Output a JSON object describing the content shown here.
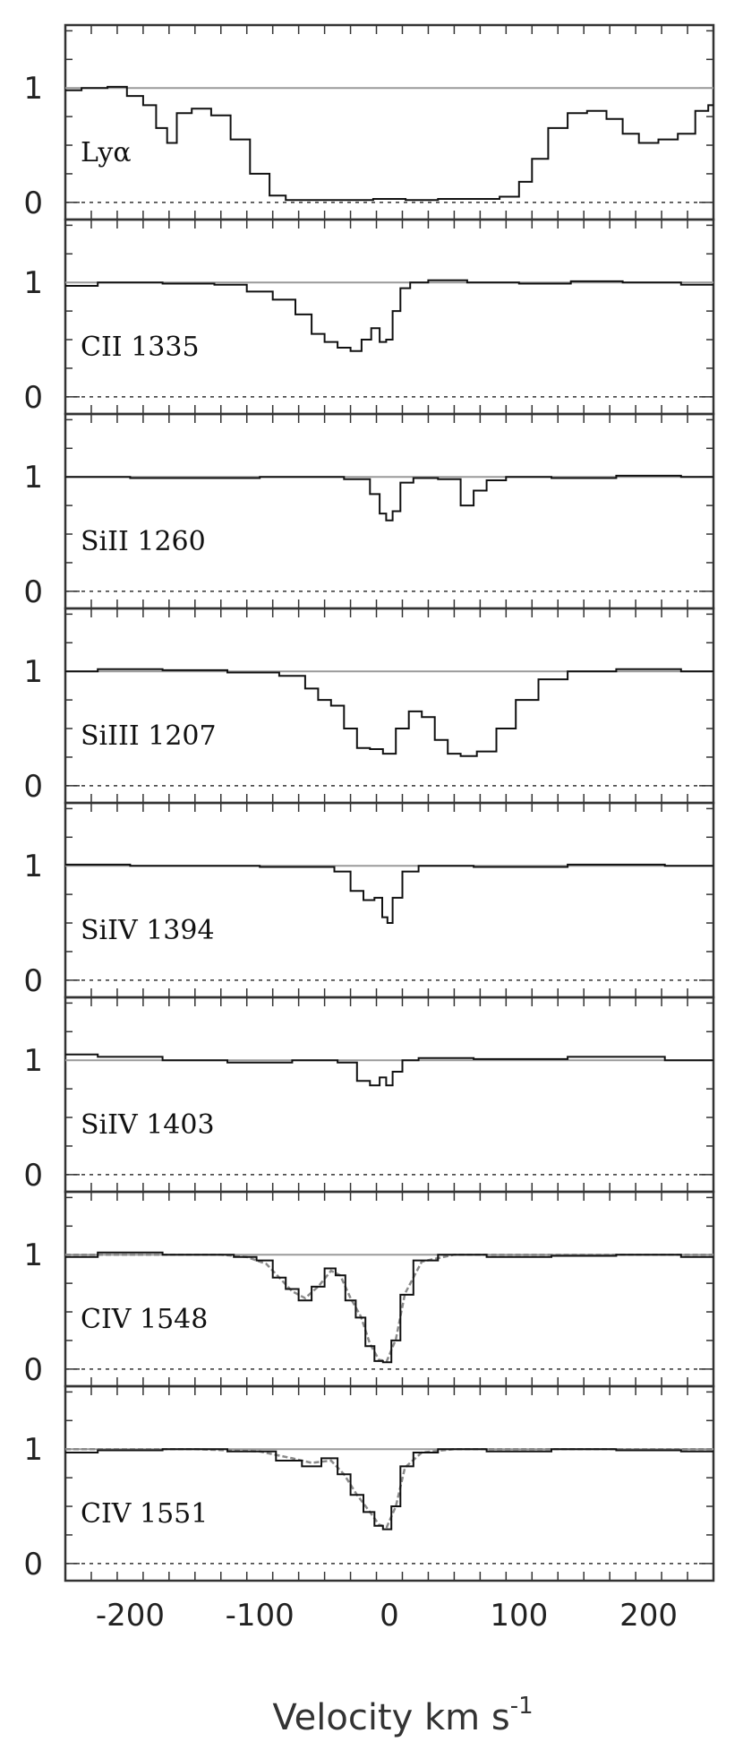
{
  "chart_data": {
    "type": "line",
    "xlim": [
      -250,
      250
    ],
    "ylim": [
      -0.15,
      1.55
    ],
    "x_ticks": [
      -200,
      -100,
      0,
      100,
      200
    ],
    "x_tick_labels": [
      "-200",
      "-100",
      "0",
      "100",
      "200"
    ],
    "y_ticks": [
      0,
      1
    ],
    "y_tick_labels": [
      "0",
      "1"
    ],
    "xlabel_main": "Velocity  km  s",
    "xlabel_sup": "-1",
    "panels": [
      {
        "label": "Lyα",
        "x": [
          -250,
          -225,
          -210,
          -195,
          -185,
          -175,
          -168,
          -160,
          -145,
          -130,
          -115,
          -100,
          -85,
          -75,
          -50,
          -25,
          0,
          25,
          50,
          75,
          95,
          105,
          115,
          130,
          145,
          160,
          175,
          185,
          200,
          215,
          230,
          242,
          250
        ],
        "y": [
          0.98,
          1.0,
          1.01,
          0.93,
          0.85,
          0.65,
          0.52,
          0.78,
          0.82,
          0.76,
          0.55,
          0.25,
          0.06,
          0.02,
          0.02,
          0.02,
          0.03,
          0.02,
          0.03,
          0.03,
          0.05,
          0.18,
          0.38,
          0.65,
          0.78,
          0.8,
          0.73,
          0.6,
          0.52,
          0.55,
          0.6,
          0.8,
          0.85
        ],
        "fit_y": null
      },
      {
        "label": "CII  1335",
        "x": [
          -250,
          -200,
          -150,
          -120,
          -100,
          -80,
          -65,
          -55,
          -45,
          -35,
          -25,
          -18,
          -10,
          -5,
          0,
          5,
          12,
          20,
          40,
          80,
          120,
          160,
          200,
          250
        ],
        "y": [
          0.97,
          1.0,
          0.99,
          0.98,
          0.92,
          0.85,
          0.72,
          0.55,
          0.48,
          0.43,
          0.4,
          0.5,
          0.6,
          0.48,
          0.5,
          0.75,
          0.95,
          1.0,
          1.02,
          1.0,
          0.99,
          1.01,
          1.0,
          0.98
        ],
        "fit_y": null
      },
      {
        "label": "SiII  1260",
        "x": [
          -250,
          -150,
          -50,
          -20,
          -10,
          -5,
          0,
          5,
          12,
          25,
          50,
          60,
          70,
          80,
          100,
          150,
          200,
          250
        ],
        "y": [
          1.0,
          0.99,
          1.0,
          0.98,
          0.85,
          0.68,
          0.62,
          0.7,
          0.95,
          0.99,
          0.98,
          0.75,
          0.88,
          0.97,
          1.0,
          0.99,
          1.01,
          1.0
        ],
        "fit_y": null
      },
      {
        "label": "SiIII  1207",
        "x": [
          -250,
          -200,
          -150,
          -100,
          -70,
          -60,
          -50,
          -40,
          -30,
          -20,
          -10,
          0,
          10,
          20,
          30,
          40,
          50,
          60,
          75,
          90,
          105,
          125,
          150,
          200,
          250
        ],
        "y": [
          1.0,
          1.02,
          1.01,
          0.99,
          0.96,
          0.85,
          0.75,
          0.7,
          0.5,
          0.33,
          0.32,
          0.28,
          0.5,
          0.65,
          0.6,
          0.4,
          0.28,
          0.26,
          0.3,
          0.5,
          0.75,
          0.93,
          1.0,
          1.02,
          1.0
        ],
        "fit_y": null
      },
      {
        "label": "SiIV  1394",
        "x": [
          -250,
          -150,
          -50,
          -35,
          -25,
          -15,
          -8,
          -3,
          0,
          5,
          15,
          30,
          100,
          175,
          250
        ],
        "y": [
          1.01,
          1.0,
          0.99,
          0.95,
          0.78,
          0.7,
          0.72,
          0.55,
          0.5,
          0.72,
          0.95,
          1.0,
          0.99,
          1.01,
          1.0
        ],
        "fit_y": null
      },
      {
        "label": "SiIV  1403",
        "x": [
          -250,
          -200,
          -150,
          -100,
          -50,
          -30,
          -20,
          -10,
          -5,
          0,
          5,
          15,
          30,
          100,
          175,
          250
        ],
        "y": [
          1.05,
          1.03,
          1.0,
          0.98,
          1.0,
          0.98,
          0.82,
          0.78,
          0.85,
          0.78,
          0.9,
          1.0,
          1.02,
          1.01,
          1.03,
          1.0
        ],
        "fit_y": null
      },
      {
        "label": "CIV  1548",
        "x": [
          -250,
          -200,
          -150,
          -130,
          -110,
          -95,
          -85,
          -75,
          -65,
          -55,
          -45,
          -38,
          -30,
          -22,
          -15,
          -8,
          -2,
          5,
          12,
          25,
          50,
          100,
          150,
          200,
          250
        ],
        "y": [
          0.98,
          1.02,
          1.0,
          1.0,
          0.98,
          0.95,
          0.8,
          0.7,
          0.6,
          0.72,
          0.88,
          0.82,
          0.6,
          0.45,
          0.2,
          0.07,
          0.06,
          0.25,
          0.65,
          0.95,
          1.0,
          0.98,
          0.99,
          1.0,
          0.98
        ],
        "fit_y": [
          1.0,
          1.0,
          1.0,
          1.0,
          0.98,
          0.92,
          0.8,
          0.68,
          0.62,
          0.72,
          0.86,
          0.82,
          0.62,
          0.46,
          0.22,
          0.08,
          0.07,
          0.26,
          0.66,
          0.94,
          1.0,
          1.0,
          1.0,
          1.0,
          1.0
        ]
      },
      {
        "label": "CIV  1551",
        "x": [
          -250,
          -200,
          -150,
          -100,
          -75,
          -60,
          -45,
          -35,
          -25,
          -15,
          -8,
          -2,
          5,
          12,
          25,
          50,
          100,
          150,
          200,
          250
        ],
        "y": [
          0.97,
          0.99,
          1.0,
          0.98,
          0.9,
          0.85,
          0.92,
          0.78,
          0.6,
          0.45,
          0.33,
          0.3,
          0.5,
          0.85,
          0.97,
          1.0,
          0.98,
          1.0,
          0.99,
          0.98
        ],
        "fit_y": [
          1.0,
          1.0,
          1.0,
          0.98,
          0.92,
          0.88,
          0.9,
          0.78,
          0.6,
          0.45,
          0.34,
          0.32,
          0.5,
          0.84,
          0.97,
          1.0,
          1.0,
          1.0,
          1.0,
          1.0
        ]
      }
    ]
  }
}
